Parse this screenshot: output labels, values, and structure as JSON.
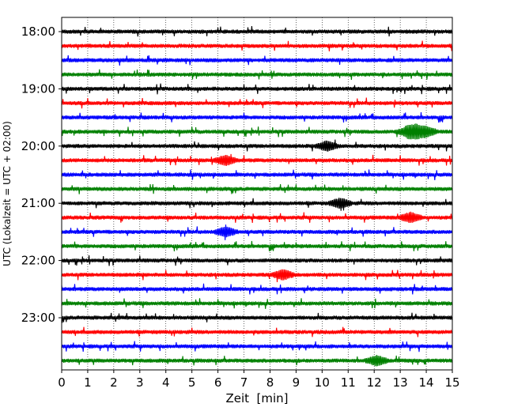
{
  "chart_data": {
    "type": "line",
    "title": "",
    "xlabel": "Zeit  [min]",
    "ylabel": "UTC (Lokalzeit = UTC + 02:00)",
    "xlim": [
      0,
      15
    ],
    "x_ticks": [
      0,
      1,
      2,
      3,
      4,
      5,
      6,
      7,
      8,
      9,
      10,
      11,
      12,
      13,
      14,
      15
    ],
    "x_tick_labels": [
      "0",
      "1",
      "2",
      "3",
      "4",
      "5",
      "6",
      "7",
      "8",
      "9",
      "10",
      "11",
      "12",
      "13",
      "14",
      "15"
    ],
    "y_tick_labels": [
      "18:00",
      "19:00",
      "20:00",
      "21:00",
      "22:00",
      "23:00"
    ],
    "row_interval_min": 15,
    "vertical_grid": "dotted",
    "trace_colors": [
      "#000000",
      "#ff0000",
      "#0000ff",
      "#008000"
    ],
    "traces": [
      {
        "start_utc": "18:00",
        "color": "#000000"
      },
      {
        "start_utc": "18:15",
        "color": "#ff0000"
      },
      {
        "start_utc": "18:30",
        "color": "#0000ff"
      },
      {
        "start_utc": "18:45",
        "color": "#008000"
      },
      {
        "start_utc": "19:00",
        "color": "#000000"
      },
      {
        "start_utc": "19:15",
        "color": "#ff0000"
      },
      {
        "start_utc": "19:30",
        "color": "#0000ff"
      },
      {
        "start_utc": "19:45",
        "color": "#008000",
        "events_min": [
          13.3,
          13.6,
          14.0
        ]
      },
      {
        "start_utc": "20:00",
        "color": "#000000",
        "events_min": [
          10.2
        ]
      },
      {
        "start_utc": "20:15",
        "color": "#ff0000",
        "events_min": [
          6.3
        ]
      },
      {
        "start_utc": "20:30",
        "color": "#0000ff"
      },
      {
        "start_utc": "20:45",
        "color": "#008000"
      },
      {
        "start_utc": "21:00",
        "color": "#000000",
        "events_min": [
          10.7
        ]
      },
      {
        "start_utc": "21:15",
        "color": "#ff0000",
        "events_min": [
          13.4
        ]
      },
      {
        "start_utc": "21:30",
        "color": "#0000ff",
        "events_min": [
          6.3
        ]
      },
      {
        "start_utc": "21:45",
        "color": "#008000"
      },
      {
        "start_utc": "22:00",
        "color": "#000000"
      },
      {
        "start_utc": "22:15",
        "color": "#ff0000",
        "events_min": [
          8.5
        ]
      },
      {
        "start_utc": "22:30",
        "color": "#0000ff"
      },
      {
        "start_utc": "22:45",
        "color": "#008000"
      },
      {
        "start_utc": "23:00",
        "color": "#000000"
      },
      {
        "start_utc": "23:15",
        "color": "#ff0000"
      },
      {
        "start_utc": "23:30",
        "color": "#0000ff"
      },
      {
        "start_utc": "23:45",
        "color": "#008000",
        "events_min": [
          12.1
        ]
      }
    ]
  }
}
